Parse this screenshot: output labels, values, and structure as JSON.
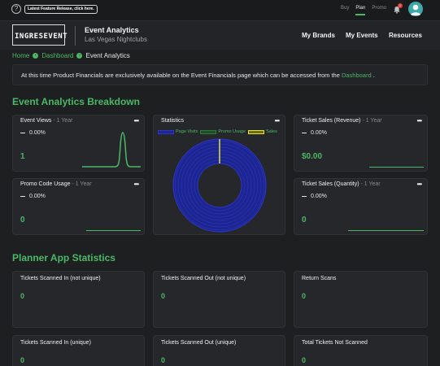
{
  "topbar": {
    "help_glyph": "?",
    "release_label": "Latest Feature Release, click here.",
    "modes": [
      "Buy",
      "Plan",
      "Promo"
    ],
    "notification_count": "1"
  },
  "header": {
    "logo_text": "INGRESEVENT",
    "event_title": "Event Analytics",
    "event_subtitle": "Las Vegas Nightclubs",
    "nav": [
      "My Brands",
      "My Events",
      "Resources"
    ]
  },
  "breadcrumb": {
    "home": "Home",
    "dashboard": "Dashboard",
    "current": "Event Analytics"
  },
  "notice": {
    "text_before": "At this time Product Financials are exclusively available on the Event Financials page which can be accessed from the ",
    "link": "Dashboard",
    "text_after": " ."
  },
  "breakdown": {
    "heading": "Event Analytics Breakdown",
    "menu_glyph": "•••",
    "event_views": {
      "title": "Event Views",
      "period": " - 1 Year",
      "pct": "0.00%",
      "value": "1"
    },
    "promo_usage": {
      "title": "Promo Code Usage",
      "period": " - 1 Year",
      "pct": "0.00%",
      "value": "0"
    },
    "statistics": {
      "title": "Statistics",
      "legend": [
        "Page Visits",
        "Promo Usage",
        "Sales"
      ]
    },
    "ticket_revenue": {
      "title": "Ticket Sales (Revenue)",
      "period": " - 1 Year",
      "pct": "0.00%",
      "value": "$0.00"
    },
    "ticket_quantity": {
      "title": "Ticket Sales (Quantity)",
      "period": " - 1 Year",
      "pct": "0.00%",
      "value": "0"
    }
  },
  "planner": {
    "heading": "Planner App Statistics",
    "cards": [
      {
        "title": "Tickets Scanned In (not unique)",
        "value": "0"
      },
      {
        "title": "Tickets Scanned Out (not unique)",
        "value": "0"
      },
      {
        "title": "Return Scans",
        "value": "0"
      },
      {
        "title": "Tickets Scanned In (unique)",
        "value": "0"
      },
      {
        "title": "Tickets Scanned Out (unique)",
        "value": "0"
      },
      {
        "title": "Total Tickets Not Scanned",
        "value": "0"
      }
    ]
  },
  "colors": {
    "accent": "#4ab866",
    "page_visits": "#2b35c8",
    "promo_usage": "#2f7a3a",
    "sales": "#e5e52e"
  },
  "chart_data": [
    {
      "type": "pie",
      "title": "Statistics",
      "categories": [
        "Page Visits",
        "Promo Usage",
        "Sales"
      ],
      "values": [
        1,
        0,
        0
      ]
    }
  ]
}
